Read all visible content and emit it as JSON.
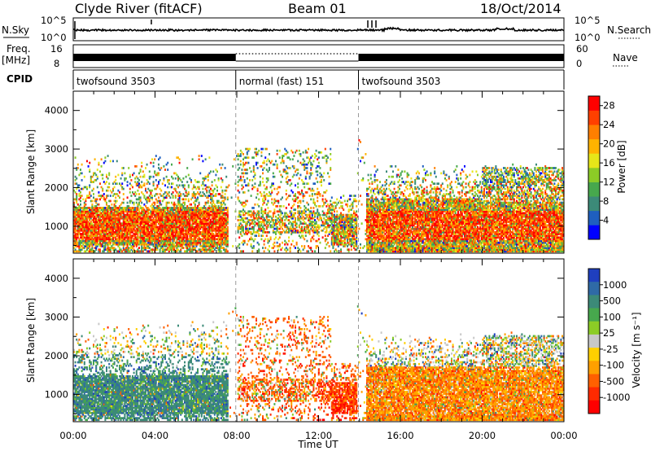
{
  "header": {
    "station": "Clyde River (fitACF)",
    "beam": "Beam 01",
    "date": "18/Oct/2014"
  },
  "strip_labels": {
    "nsky": "N.Sky",
    "freq_top": "Freq.",
    "freq_unit": "[MHz]",
    "cpid": "CPID",
    "nsearch": "N.Search",
    "nave": "Nave",
    "nsky_ticks": [
      "10^5",
      "10^0"
    ],
    "nsearch_ticks": [
      "10^5",
      "10^0"
    ],
    "freq_ticks": [
      "16",
      "8"
    ],
    "nave_ticks": [
      "60",
      "0"
    ]
  },
  "cpid_segments": [
    {
      "label": "twofsound 3503",
      "start_h": 0.0,
      "end_h": 7.95
    },
    {
      "label": "normal (fast) 151",
      "start_h": 7.95,
      "end_h": 13.95
    },
    {
      "label": "twofsound 3503",
      "start_h": 13.95,
      "end_h": 24.0
    }
  ],
  "colors": {
    "power_scale": [
      "#0000ff",
      "#1f5fbf",
      "#3c8a78",
      "#47a84d",
      "#8ccc26",
      "#e6e619",
      "#ffb300",
      "#ff7f00",
      "#ff4000",
      "#ff0000"
    ],
    "velocity_scale": [
      "#1f3fbf",
      "#2f6aa6",
      "#3c8a78",
      "#47a84d",
      "#8ccc26",
      "#c8c8c8",
      "#ffd000",
      "#ffa000",
      "#ff6000",
      "#ff2a00",
      "#ff0000"
    ]
  },
  "chart_data": [
    {
      "type": "heatmap",
      "name": "power",
      "ylabel": "Slant Range [km]",
      "xlabel": "",
      "yticks": [
        "1000",
        "2000",
        "3000",
        "4000"
      ],
      "ylim": [
        300,
        4500
      ],
      "xlim": [
        0,
        24
      ],
      "colorbar_label": "Power [dB]",
      "colorbar_ticks": [
        "4",
        "8",
        "12",
        "16",
        "20",
        "24",
        "28"
      ],
      "colorbar_range": [
        0,
        30
      ]
    },
    {
      "type": "heatmap",
      "name": "velocity",
      "ylabel": "Slant Range [km]",
      "xlabel": "Time UT",
      "yticks": [
        "1000",
        "2000",
        "3000",
        "4000"
      ],
      "ylim": [
        300,
        4500
      ],
      "xlim": [
        0,
        24
      ],
      "xticks": [
        "00:00",
        "04:00",
        "08:00",
        "12:00",
        "16:00",
        "20:00",
        "00:00"
      ],
      "colorbar_label": "Velocity [m s⁻¹]",
      "colorbar_ticks": [
        "1000",
        "500",
        "100",
        "25",
        "-25",
        "-100",
        "-500",
        "-1000"
      ]
    }
  ]
}
